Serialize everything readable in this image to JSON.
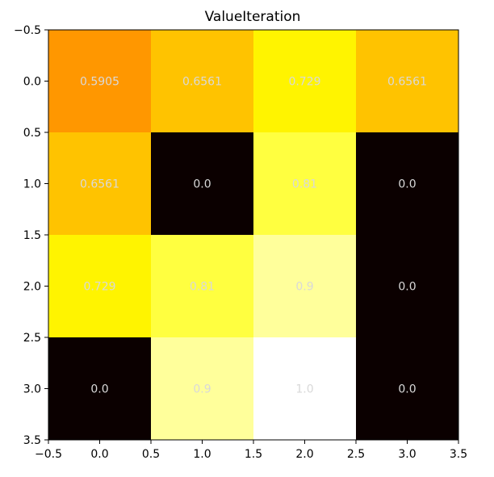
{
  "chart_data": {
    "type": "heatmap",
    "title": "ValueIteration",
    "xlabel": "",
    "ylabel": "",
    "colormap": "hot",
    "color_range": [
      0.0,
      1.0
    ],
    "rows": 4,
    "cols": 4,
    "values": [
      [
        0.5905,
        0.6561,
        0.729,
        0.6561
      ],
      [
        0.6561,
        0.0,
        0.81,
        0.0
      ],
      [
        0.729,
        0.81,
        0.9,
        0.0
      ],
      [
        0.0,
        0.9,
        1.0,
        0.0
      ]
    ],
    "cell_labels": [
      [
        "0.5905",
        "0.6561",
        "0.729",
        "0.6561"
      ],
      [
        "0.6561",
        "0.0",
        "0.81",
        "0.0"
      ],
      [
        "0.729",
        "0.81",
        "0.9",
        "0.0"
      ],
      [
        "0.0",
        "0.9",
        "1.0",
        "0.0"
      ]
    ],
    "xlim": [
      -0.5,
      3.5
    ],
    "ylim": [
      3.5,
      -0.5
    ],
    "xticks": [
      "−0.5",
      "0.0",
      "0.5",
      "1.0",
      "1.5",
      "2.0",
      "2.5",
      "3.0",
      "3.5"
    ],
    "yticks": [
      "−0.5",
      "0.0",
      "0.5",
      "1.0",
      "1.5",
      "2.0",
      "2.5",
      "3.0",
      "3.5"
    ],
    "grid": false,
    "legend": "none",
    "label_color": "#d9d9d9"
  }
}
